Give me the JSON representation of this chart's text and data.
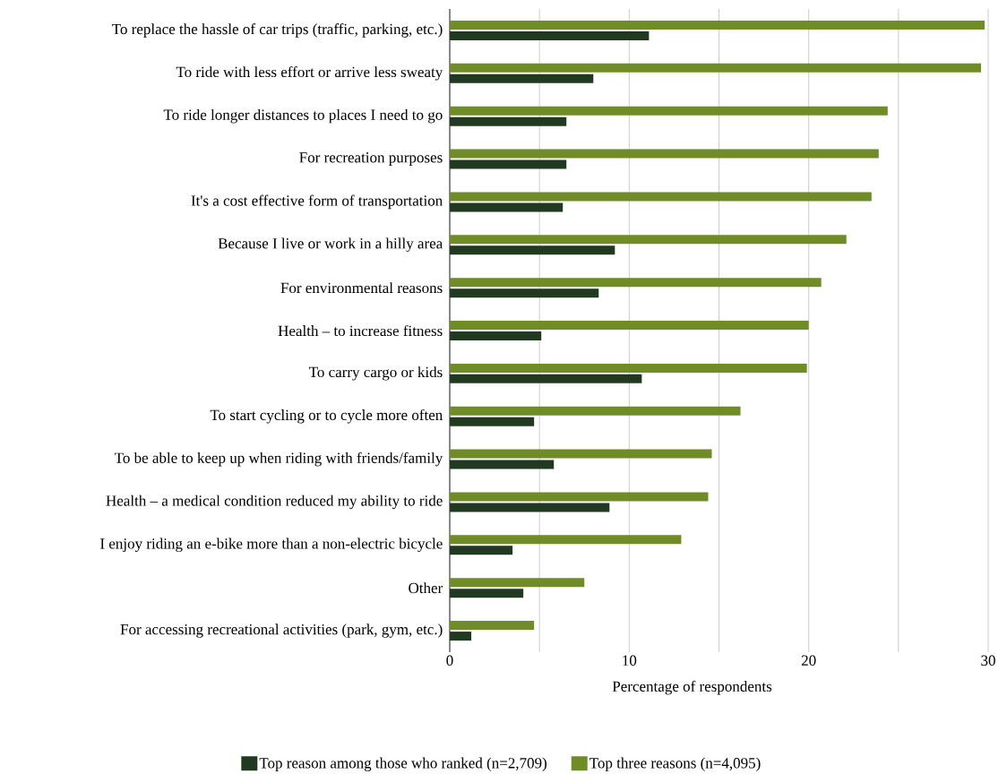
{
  "chart_data": {
    "type": "bar",
    "orientation": "horizontal",
    "xlabel": "Percentage of respondents",
    "categories": [
      "To replace the hassle of car trips (traffic, parking, etc.)",
      "To ride with less effort or arrive less sweaty",
      "To ride longer distances to places I need to go",
      "For recreation purposes",
      "It's a cost effective form of transportation",
      "Because I live or work in a hilly area",
      "For environmental reasons",
      "Health – to increase fitness",
      "To carry cargo or kids",
      "To start cycling or to cycle more often",
      "To be able to keep up when riding with friends/family",
      "Health – a medical condition reduced my ability to ride",
      "I enjoy riding an e-bike more than a non-electric bicycle",
      "Other",
      "For accessing recreational activities (park, gym, etc.)"
    ],
    "series": [
      {
        "name": "Top reason among those who ranked (n=2,709)",
        "color": "#213821",
        "values": [
          11.1,
          8.0,
          6.5,
          6.5,
          6.3,
          9.2,
          8.3,
          5.1,
          10.7,
          4.7,
          5.8,
          8.9,
          3.5,
          4.1,
          1.2
        ]
      },
      {
        "name": "Top three reasons (n=4,095)",
        "color": "#6f8c26",
        "values": [
          29.8,
          29.6,
          24.4,
          23.9,
          23.5,
          22.1,
          20.7,
          20.0,
          19.9,
          16.2,
          14.6,
          14.4,
          12.9,
          7.5,
          4.7
        ]
      }
    ],
    "xlim": [
      0,
      30
    ],
    "xticks": [
      0,
      {
        "value": 5,
        "label": null
      },
      10,
      {
        "value": 15,
        "label": null
      },
      20,
      {
        "value": 25,
        "label": null
      },
      30
    ],
    "grid": "x",
    "legend": "bottom"
  }
}
